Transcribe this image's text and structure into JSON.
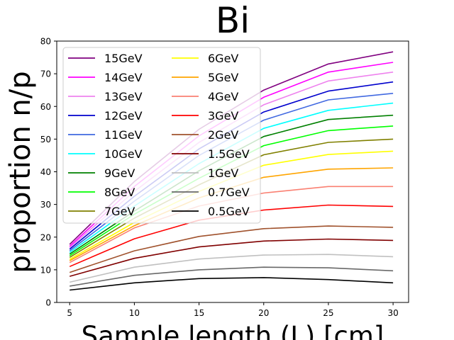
{
  "chart_data": {
    "type": "line",
    "title": "Bi",
    "xlabel": "Sample length (L) [cm]",
    "ylabel": "proportion n/p",
    "x": [
      5,
      10,
      15,
      20,
      25,
      30
    ],
    "xlim": [
      4,
      31.2
    ],
    "ylim": [
      0,
      80
    ],
    "xticks": [
      5,
      10,
      15,
      20,
      25,
      30
    ],
    "yticks": [
      0,
      10,
      20,
      30,
      40,
      50,
      60,
      70,
      80
    ],
    "grid": false,
    "legend_position": "upper-left",
    "legend_columns": 2,
    "series": [
      {
        "name": "15GeV",
        "color": "#800080",
        "values": [
          17.8,
          37,
          53,
          65,
          73,
          76.7
        ]
      },
      {
        "name": "14GeV",
        "color": "#ff00ff",
        "values": [
          17.2,
          35.5,
          51,
          62.8,
          70.5,
          73.5
        ]
      },
      {
        "name": "13GeV",
        "color": "#ee82ee",
        "values": [
          16.8,
          34,
          49,
          60.5,
          67.8,
          70.5
        ]
      },
      {
        "name": "12GeV",
        "color": "#0000cd",
        "values": [
          16.3,
          32.5,
          47,
          58.3,
          64.7,
          67.5
        ]
      },
      {
        "name": "11GeV",
        "color": "#4169e1",
        "values": [
          15.8,
          31,
          45,
          55.8,
          62,
          64
        ]
      },
      {
        "name": "10GeV",
        "color": "#00ffff",
        "values": [
          15.3,
          29.5,
          42.5,
          53.3,
          58.8,
          61
        ]
      },
      {
        "name": "9GeV",
        "color": "#008000",
        "values": [
          14.8,
          28,
          40.3,
          50.8,
          56,
          57.3
        ]
      },
      {
        "name": "8GeV",
        "color": "#00ff00",
        "values": [
          14.3,
          27,
          38,
          48,
          52.6,
          54
        ]
      },
      {
        "name": "7GeV",
        "color": "#808000",
        "values": [
          13.8,
          25.8,
          36,
          45.2,
          49,
          50
        ]
      },
      {
        "name": "6GeV",
        "color": "#ffff00",
        "values": [
          13.2,
          24.5,
          34,
          42,
          45.3,
          46.3
        ]
      },
      {
        "name": "5GeV",
        "color": "#ffa500",
        "values": [
          12.8,
          23.5,
          32,
          38.3,
          40.8,
          41.2
        ]
      },
      {
        "name": "4GeV",
        "color": "#fa8072",
        "values": [
          12.2,
          22.8,
          29.5,
          33.5,
          35.5,
          35.5
        ]
      },
      {
        "name": "3GeV",
        "color": "#ff0000",
        "values": [
          11,
          19.5,
          25.2,
          28.3,
          29.8,
          29.4
        ]
      },
      {
        "name": "2GeV",
        "color": "#a0522d",
        "values": [
          9.2,
          15.8,
          20.2,
          22.6,
          23.4,
          23
        ]
      },
      {
        "name": "1.5GeV",
        "color": "#800000",
        "values": [
          8,
          13.5,
          17,
          18.8,
          19.4,
          19
        ]
      },
      {
        "name": "1GeV",
        "color": "#c0c0c0",
        "values": [
          6.2,
          10.8,
          13.3,
          14.5,
          14.7,
          14
        ]
      },
      {
        "name": "0.7GeV",
        "color": "#696969",
        "values": [
          5,
          8.3,
          10,
          10.8,
          10.6,
          9.7
        ]
      },
      {
        "name": "0.5GeV",
        "color": "#000000",
        "values": [
          3.8,
          6,
          7.3,
          7.6,
          7,
          6
        ]
      }
    ]
  }
}
